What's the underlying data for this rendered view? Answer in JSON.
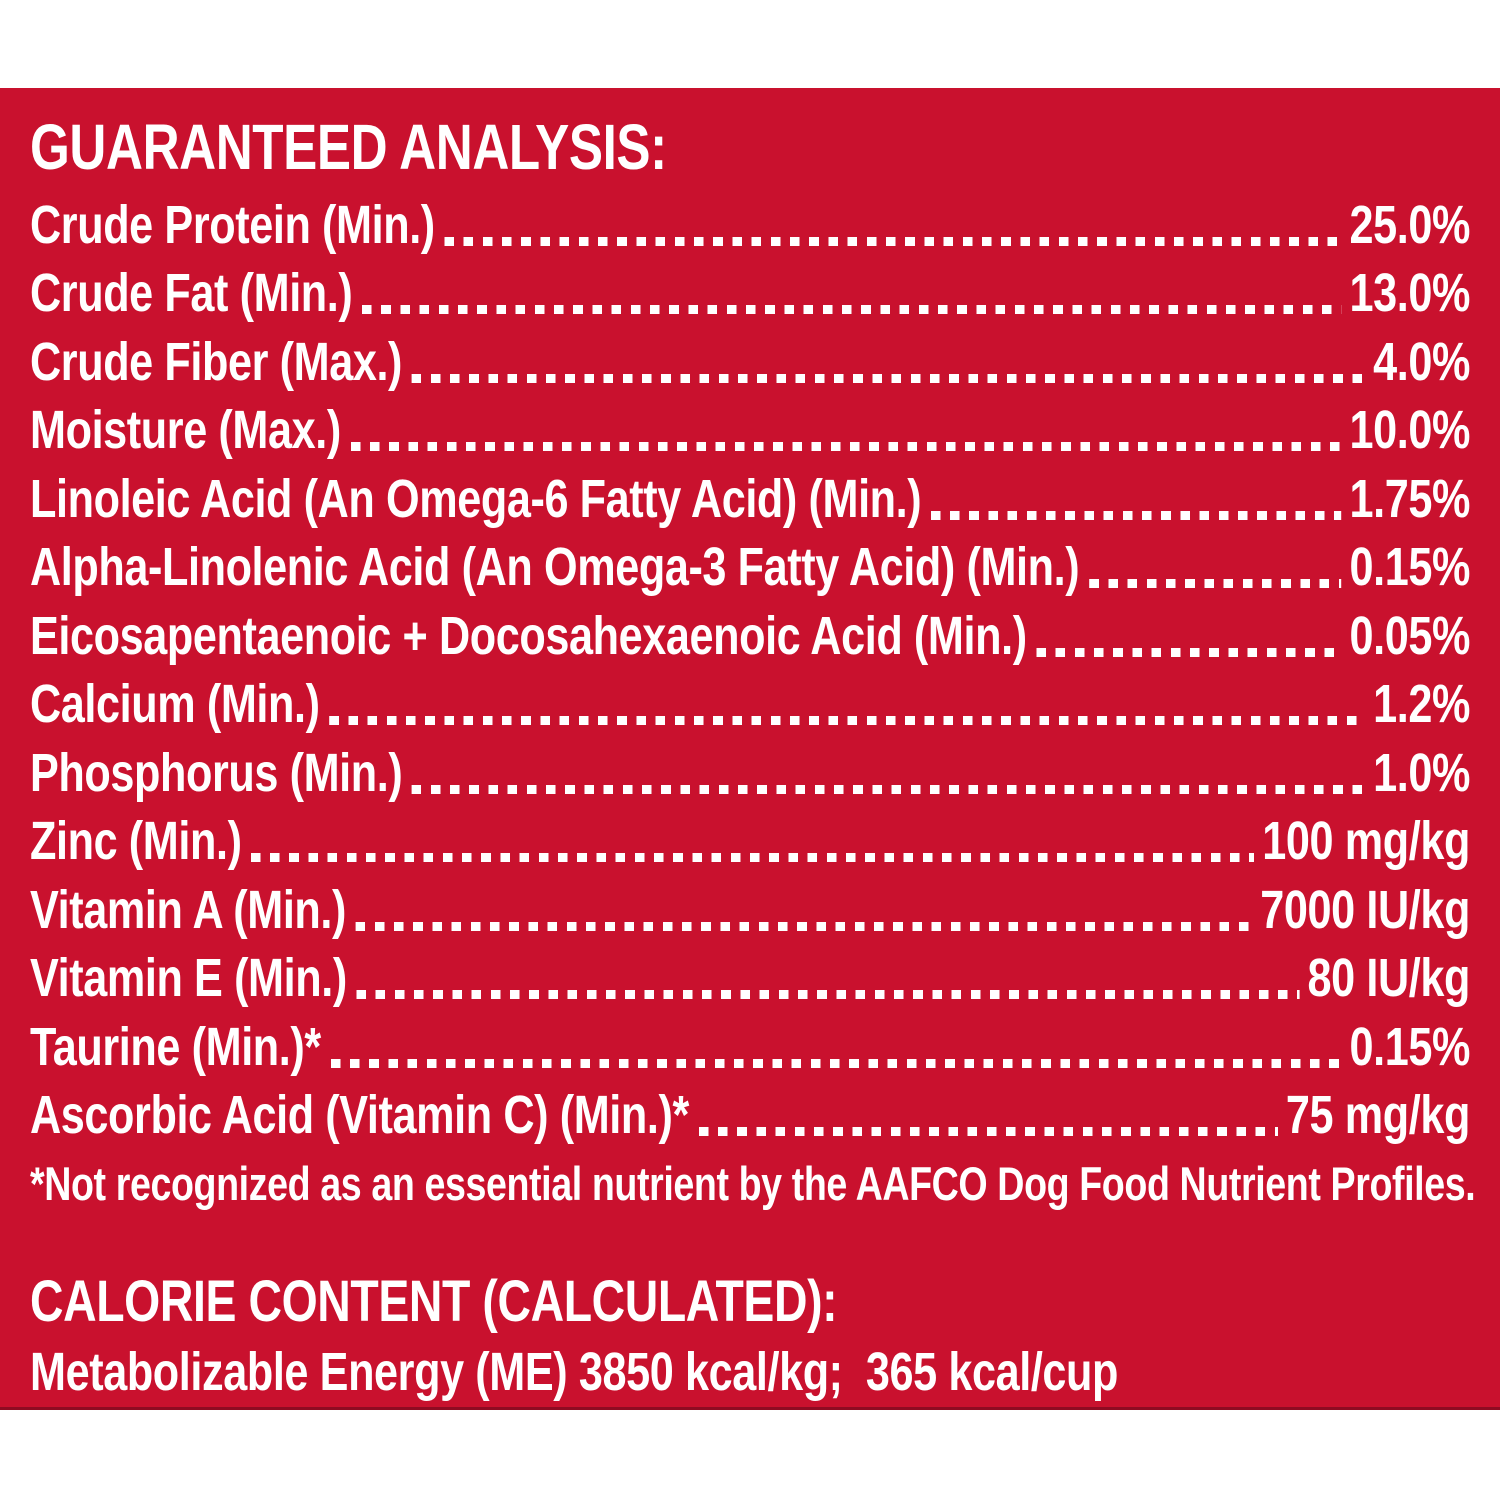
{
  "colors": {
    "panel_red": "#C9112E",
    "panel_edge_dark": "#8f0b22",
    "text_white": "#FFFFFF",
    "page_background": "#FFFFFF"
  },
  "guaranteed_analysis": {
    "title": "GUARANTEED ANALYSIS:",
    "rows": [
      {
        "name": "Crude Protein (Min.)",
        "value": "25.0%"
      },
      {
        "name": "Crude Fat (Min.)",
        "value": "13.0%"
      },
      {
        "name": "Crude Fiber (Max.)",
        "value": "4.0%"
      },
      {
        "name": "Moisture (Max.)",
        "value": "10.0%"
      },
      {
        "name": "Linoleic Acid (An Omega-6 Fatty Acid) (Min.)",
        "value": "1.75%"
      },
      {
        "name": "Alpha-Linolenic Acid (An Omega-3 Fatty Acid) (Min.)",
        "value": "0.15%"
      },
      {
        "name": "Eicosapentaenoic + Docosahexaenoic Acid (Min.)",
        "value": "0.05%"
      },
      {
        "name": "Calcium (Min.)",
        "value": "1.2%"
      },
      {
        "name": "Phosphorus (Min.)",
        "value": "1.0%"
      },
      {
        "name": "Zinc (Min.)",
        "value": "100 mg/kg"
      },
      {
        "name": "Vitamin A (Min.)",
        "value": "7000 IU/kg"
      },
      {
        "name": "Vitamin E (Min.)",
        "value": "80 IU/kg"
      },
      {
        "name": "Taurine (Min.)*",
        "value": "0.15%"
      },
      {
        "name": "Ascorbic Acid (Vitamin C) (Min.)*",
        "value": "75 mg/kg"
      }
    ],
    "footnote": "*Not recognized as an essential nutrient by the AAFCO Dog Food Nutrient Profiles."
  },
  "calorie_content": {
    "title": "CALORIE CONTENT (CALCULATED):",
    "statement": "Metabolizable Energy (ME) 3850 kcal/kg;  365 kcal/cup"
  }
}
